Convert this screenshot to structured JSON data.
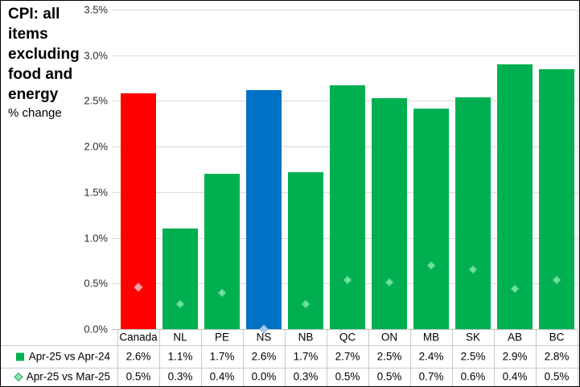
{
  "chart_data": {
    "type": "bar",
    "title": "CPI: all items excluding food and energy",
    "subtitle": "% change",
    "categories": [
      "Canada",
      "NL",
      "PE",
      "NS",
      "NB",
      "QC",
      "ON",
      "MB",
      "SK",
      "AB",
      "BC"
    ],
    "series": [
      {
        "name": "Apr-25 vs Apr-24",
        "marker": "square",
        "values": [
          2.6,
          1.1,
          1.7,
          2.6,
          1.7,
          2.7,
          2.5,
          2.4,
          2.5,
          2.9,
          2.8
        ],
        "display": [
          "2.6%",
          "1.1%",
          "1.7%",
          "2.6%",
          "1.7%",
          "2.7%",
          "2.5%",
          "2.4%",
          "2.5%",
          "2.9%",
          "2.8%"
        ]
      },
      {
        "name": "Apr-25 vs Mar-25",
        "marker": "diamond",
        "values": [
          0.5,
          0.3,
          0.4,
          0.0,
          0.3,
          0.5,
          0.5,
          0.7,
          0.6,
          0.4,
          0.5
        ],
        "display": [
          "0.5%",
          "0.3%",
          "0.4%",
          "0.0%",
          "0.3%",
          "0.5%",
          "0.5%",
          "0.7%",
          "0.6%",
          "0.4%",
          "0.5%"
        ]
      }
    ],
    "precise_pixel_read": {
      "bars": [
        2.58,
        1.1,
        1.7,
        2.62,
        1.72,
        2.67,
        2.53,
        2.42,
        2.54,
        2.9,
        2.85
      ],
      "markers": [
        0.46,
        0.27,
        0.4,
        0.0,
        0.27,
        0.54,
        0.51,
        0.7,
        0.65,
        0.44,
        0.54
      ]
    },
    "y_axis": {
      "min": 0,
      "max": 3.5,
      "step": 0.5,
      "tick_labels": [
        "0.0%",
        "0.5%",
        "1.0%",
        "1.5%",
        "2.0%",
        "2.5%",
        "3.0%",
        "3.5%"
      ]
    },
    "grid": true,
    "legend_position": "bottom-table",
    "colors": {
      "bar_default": "#00b050",
      "bar_Canada": "#ff0000",
      "bar_NS": "#0072c6",
      "marker_default": "#6fe39e",
      "marker_border_default": "#2ebe7b",
      "marker_Canada": "#f2a2a2",
      "marker_border_Canada": "#e68c8c",
      "marker_NS": "#a6cbee",
      "marker_border_NS": "#87b5e0",
      "legend_square": "#00b050",
      "legend_diamond_fill": "#8ce6b0",
      "legend_diamond_border": "#21a366"
    }
  }
}
